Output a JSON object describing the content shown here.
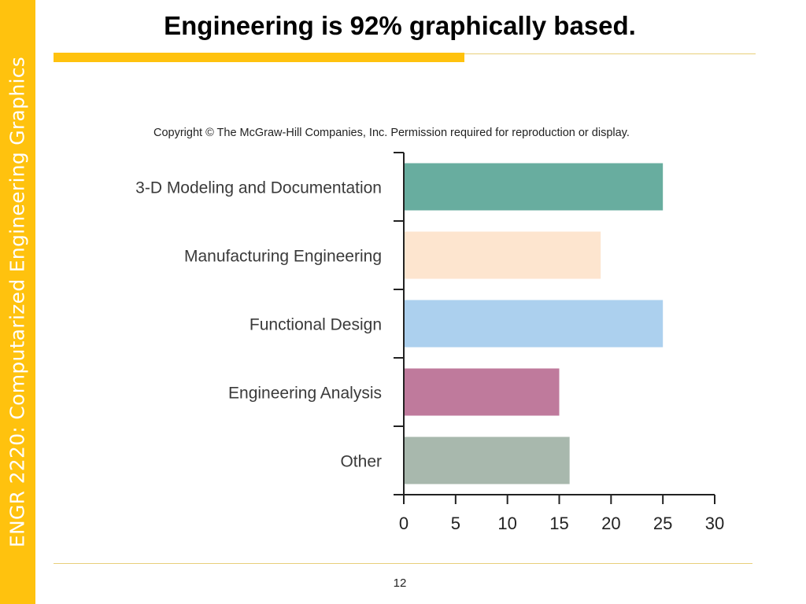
{
  "slide": {
    "title": "Engineering is 92% graphically based.",
    "side_label": "ENGR 2220: Computarized Engineering Graphics",
    "copyright": "Copyright © The McGraw-Hill Companies, Inc. Permission required for reproduction or display.",
    "page_number": "12",
    "accent_color": "#ffc20e"
  },
  "chart_data": {
    "type": "bar",
    "orientation": "horizontal",
    "categories": [
      "3-D Modeling and Documentation",
      "Manufacturing Engineering",
      "Functional Design",
      "Engineering Analysis",
      "Other"
    ],
    "values": [
      25,
      19,
      25,
      15,
      16
    ],
    "colors": [
      "#68ad9f",
      "#fde5cf",
      "#acd0ee",
      "#bf7a9c",
      "#a8b8ad"
    ],
    "xlim": [
      0,
      30
    ],
    "xticks": [
      0,
      5,
      10,
      15,
      20,
      25,
      30
    ],
    "title": "",
    "xlabel": "",
    "ylabel": "",
    "grid": false,
    "legend": "none"
  }
}
